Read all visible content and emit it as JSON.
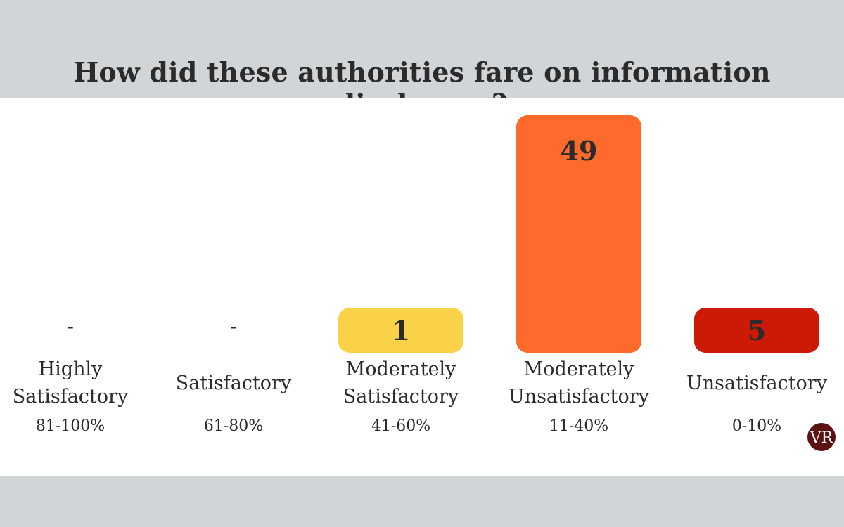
{
  "title": "How did these authorities fare on information disclosure?",
  "logo_text": "VR",
  "chart_data": {
    "type": "bar",
    "title": "How did these authorities fare on information disclosure?",
    "categories": [
      {
        "label_lines": [
          "Highly",
          "Satisfactory"
        ],
        "range": "81-100%"
      },
      {
        "label_lines": [
          "Satisfactory"
        ],
        "range": "61-80%"
      },
      {
        "label_lines": [
          "Moderately",
          "Satisfactory"
        ],
        "range": "41-60%"
      },
      {
        "label_lines": [
          "Moderately",
          "Unsatisfactory"
        ],
        "range": "11-40%"
      },
      {
        "label_lines": [
          "Unsatisfactory"
        ],
        "range": "0-10%"
      }
    ],
    "values": [
      null,
      null,
      1,
      49,
      5
    ],
    "value_labels": [
      "-",
      "-",
      "1",
      "49",
      "5"
    ],
    "colors": [
      "#ffffff",
      "#ffffff",
      "#f9d248",
      "#fd6a2b",
      "#cc1a06"
    ],
    "ylim": [
      0,
      49
    ],
    "grid": false,
    "legend": "none"
  }
}
